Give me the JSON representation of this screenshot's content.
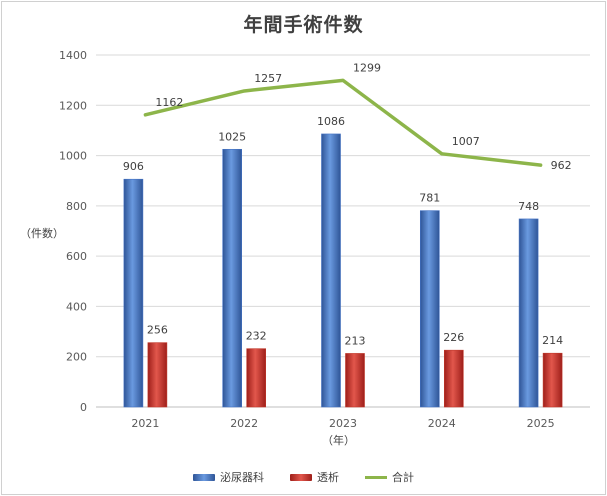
{
  "chart_data": {
    "type": "bar+line",
    "title": "年間手術件数",
    "xlabel": "（年）",
    "ylabel": "（件数）",
    "categories": [
      "2021",
      "2022",
      "2023",
      "2024",
      "2025"
    ],
    "ylim": [
      0,
      1400
    ],
    "yticks": [
      "0",
      "200",
      "400",
      "600",
      "800",
      "1000",
      "1200",
      "1400"
    ],
    "grid": true,
    "legend_position": "bottom",
    "series": [
      {
        "name": "泌尿器科",
        "type": "bar",
        "color": "#4472C4",
        "values": [
          906,
          1025,
          1086,
          781,
          748
        ]
      },
      {
        "name": "透析",
        "type": "bar",
        "color": "#C0392B",
        "values": [
          256,
          232,
          213,
          226,
          214
        ]
      },
      {
        "name": "合計",
        "type": "line",
        "color": "#8DB54A",
        "values": [
          1162,
          1257,
          1299,
          1007,
          962
        ]
      }
    ]
  }
}
